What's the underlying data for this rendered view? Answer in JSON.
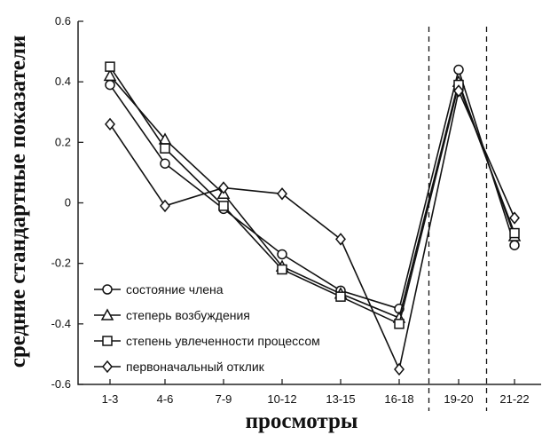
{
  "chart_data": {
    "type": "line",
    "title": "",
    "xlabel": "просмотры",
    "ylabel": "средние стандартные показатели",
    "categories": [
      "1-3",
      "4-6",
      "7-9",
      "10-12",
      "13-15",
      "16-18",
      "19-20",
      "21-22"
    ],
    "ylim": [
      -0.6,
      0.6
    ],
    "yticks": [
      "0.6",
      "0.4",
      "0.2",
      "0",
      "-0.2",
      "-0.4",
      "-0.6"
    ],
    "legend_position": "bottom-left",
    "group_dividers_after": [
      "16-18",
      "19-20"
    ],
    "series": [
      {
        "name": "состояние члена",
        "marker": "circle",
        "values": [
          0.39,
          0.13,
          -0.02,
          -0.17,
          -0.29,
          -0.35,
          0.44,
          -0.14
        ]
      },
      {
        "name": "степерь возбуждения",
        "marker": "triangle",
        "values": [
          0.42,
          0.21,
          0.03,
          -0.21,
          -0.3,
          -0.38,
          0.4,
          -0.11
        ]
      },
      {
        "name": "степень увлеченности процессом",
        "marker": "square",
        "values": [
          0.45,
          0.18,
          -0.01,
          -0.22,
          -0.31,
          -0.4,
          0.39,
          -0.1
        ]
      },
      {
        "name": "первоначальный отклик",
        "marker": "diamond",
        "values": [
          0.26,
          -0.01,
          0.05,
          0.03,
          -0.12,
          -0.55,
          0.37,
          -0.05
        ]
      }
    ]
  }
}
